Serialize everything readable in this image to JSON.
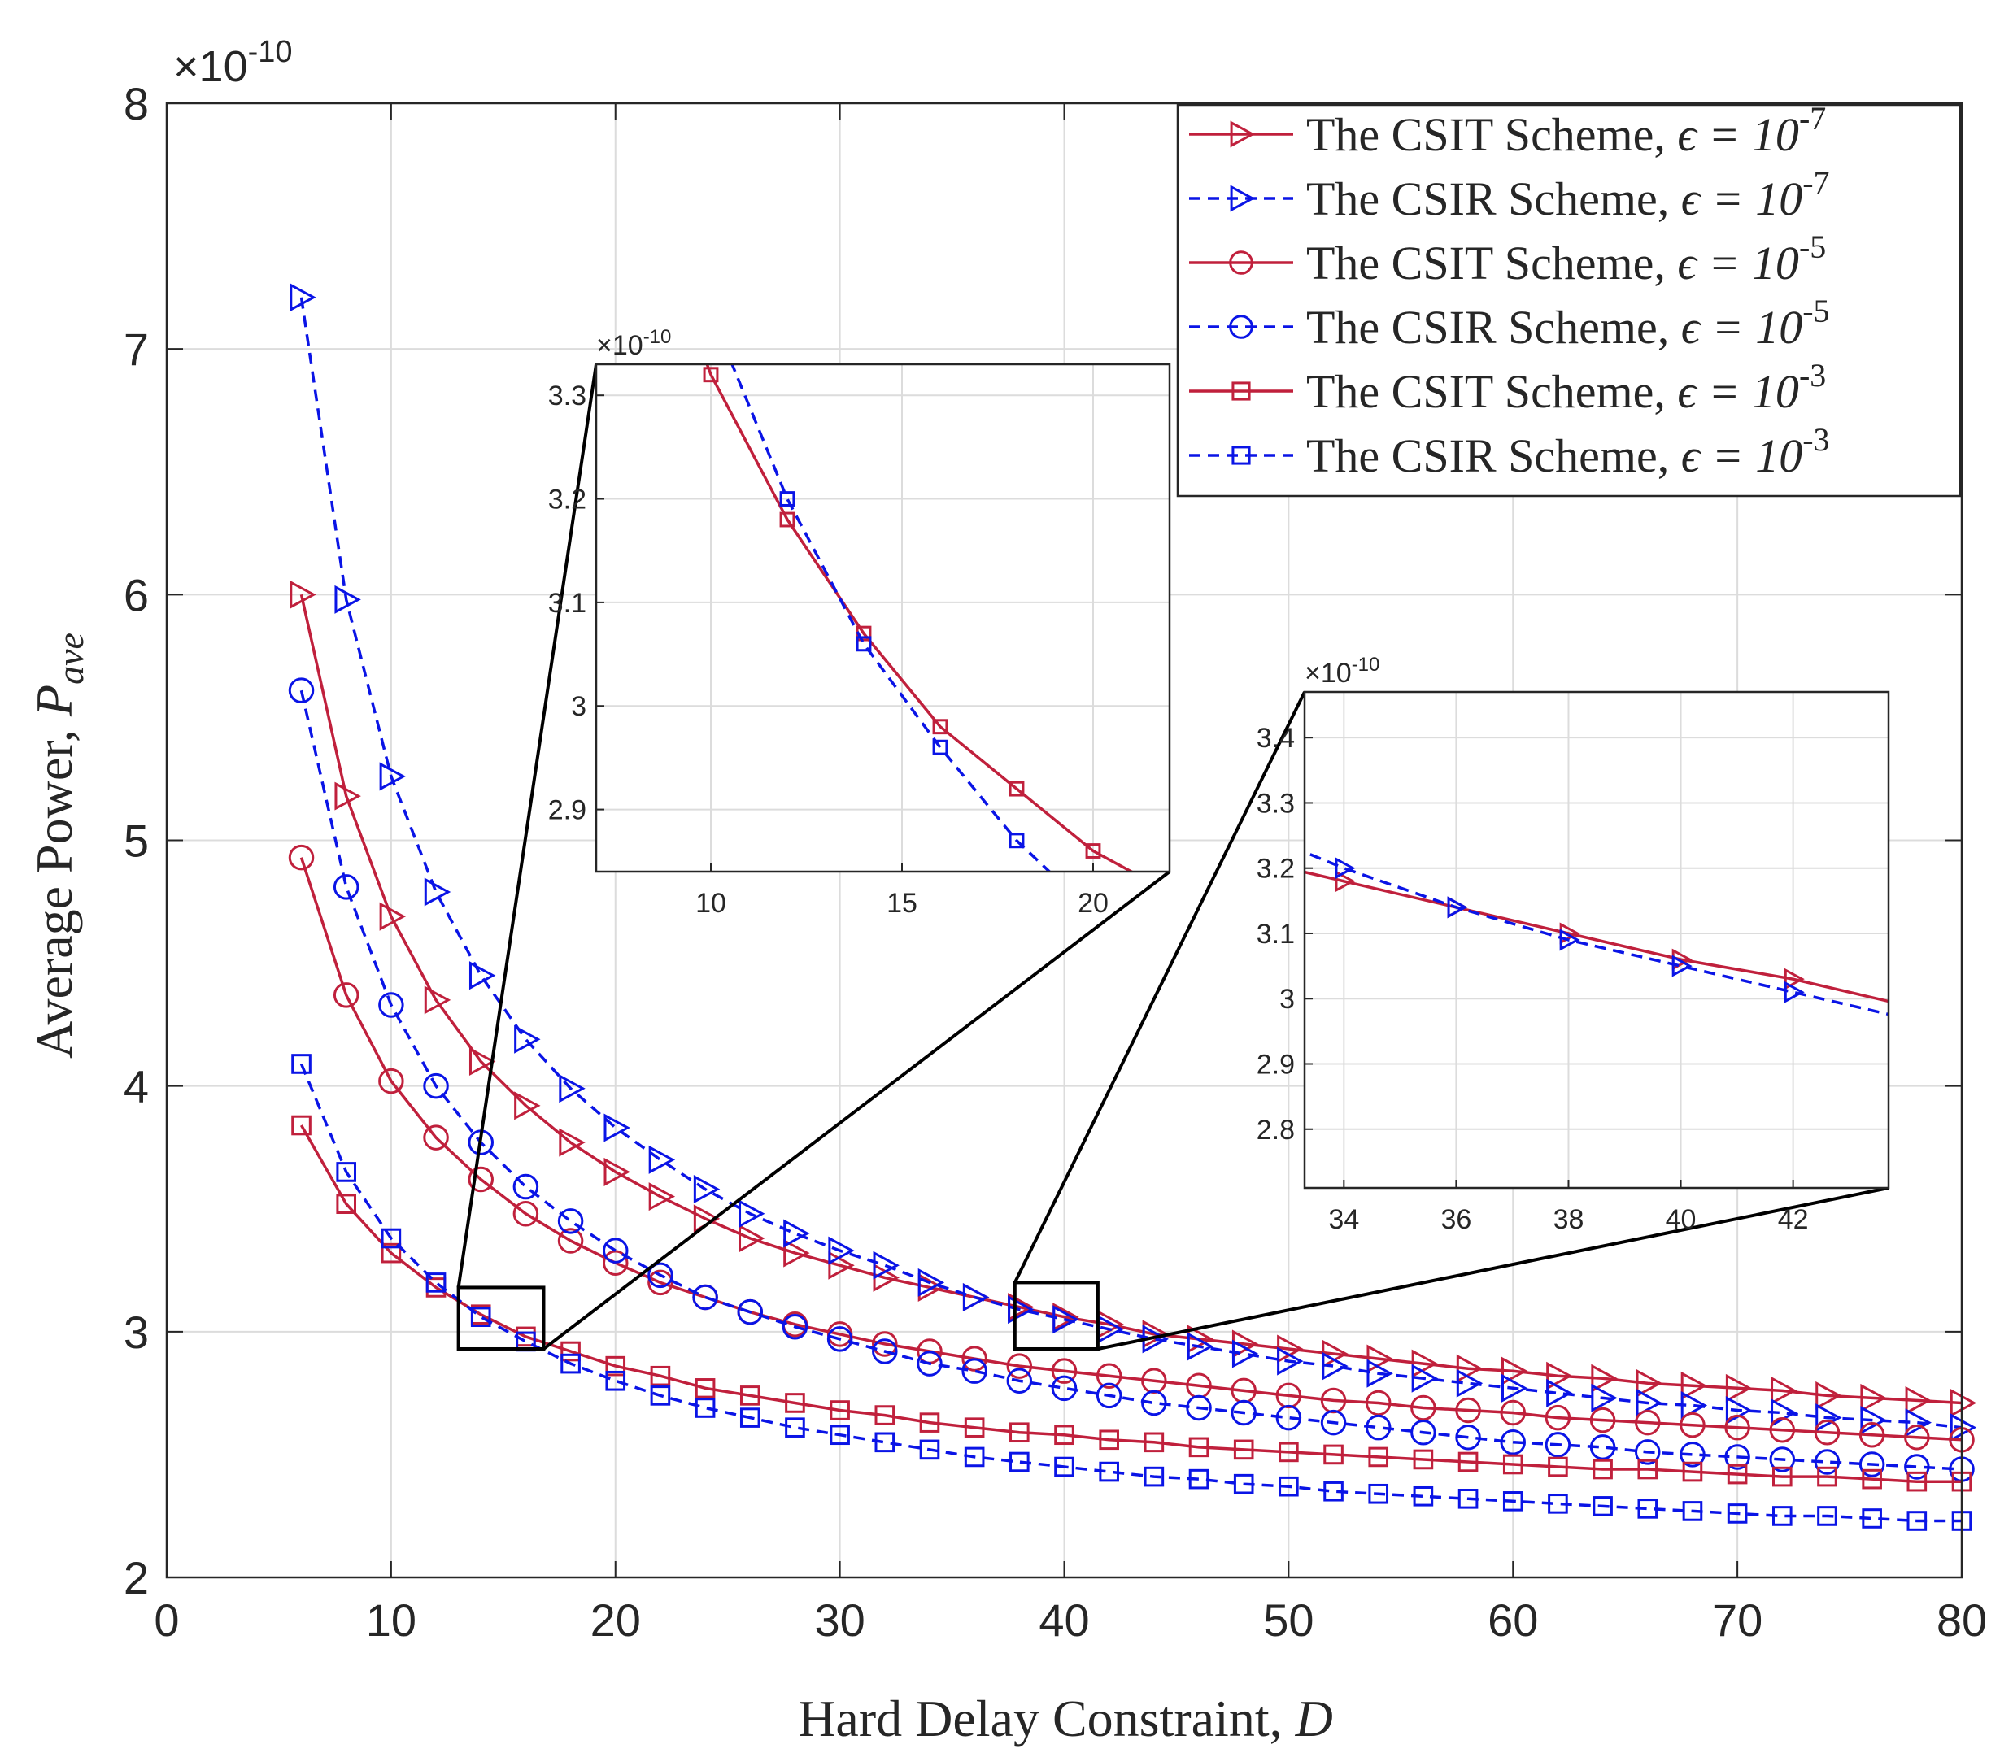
{
  "chart_data": {
    "type": "line",
    "title": "",
    "xlabel": "Hard Delay Constraint, ",
    "xlabel_var": "D",
    "ylabel": "Average Power, ",
    "ylabel_var": "P",
    "ylabel_sub": "ave",
    "y_exponent": "×10",
    "y_exponent_power": "-10",
    "xlim": [
      0,
      80
    ],
    "ylim": [
      2,
      8
    ],
    "xticks": [
      0,
      10,
      20,
      30,
      40,
      50,
      60,
      70,
      80
    ],
    "yticks": [
      2,
      3,
      4,
      5,
      6,
      7,
      8
    ],
    "grid": true,
    "legend_location": "top-right",
    "x": [
      6,
      8,
      10,
      12,
      14,
      16,
      18,
      20,
      22,
      24,
      26,
      28,
      30,
      32,
      34,
      36,
      38,
      40,
      42,
      44,
      46,
      48,
      50,
      52,
      54,
      56,
      58,
      60,
      62,
      64,
      66,
      68,
      70,
      72,
      74,
      76,
      78,
      80
    ],
    "series": [
      {
        "name": "The CSIT Scheme, ",
        "eps_power": "-7",
        "color": "#C0203C",
        "dashed": false,
        "marker": "triangle-right",
        "values": [
          6.0,
          5.18,
          4.69,
          4.35,
          4.1,
          3.92,
          3.77,
          3.65,
          3.55,
          3.46,
          3.38,
          3.32,
          3.27,
          3.22,
          3.18,
          3.14,
          3.1,
          3.06,
          3.03,
          2.99,
          2.97,
          2.95,
          2.93,
          2.91,
          2.89,
          2.87,
          2.85,
          2.84,
          2.82,
          2.81,
          2.79,
          2.78,
          2.77,
          2.76,
          2.74,
          2.73,
          2.72,
          2.71
        ]
      },
      {
        "name": "The CSIR Scheme, ",
        "eps_power": "-7",
        "color": "#0A14E6",
        "dashed": true,
        "marker": "triangle-right",
        "values": [
          7.21,
          5.98,
          5.26,
          4.79,
          4.45,
          4.19,
          3.99,
          3.83,
          3.7,
          3.58,
          3.48,
          3.4,
          3.33,
          3.27,
          3.2,
          3.14,
          3.09,
          3.05,
          3.01,
          2.97,
          2.94,
          2.91,
          2.88,
          2.86,
          2.83,
          2.81,
          2.79,
          2.77,
          2.75,
          2.73,
          2.71,
          2.7,
          2.68,
          2.67,
          2.65,
          2.64,
          2.63,
          2.61
        ]
      },
      {
        "name": "The CSIT Scheme, ",
        "eps_power": "-5",
        "color": "#C0203C",
        "dashed": false,
        "marker": "circle",
        "values": [
          4.93,
          4.37,
          4.02,
          3.79,
          3.62,
          3.48,
          3.37,
          3.28,
          3.2,
          3.14,
          3.08,
          3.03,
          2.99,
          2.95,
          2.92,
          2.89,
          2.86,
          2.84,
          2.82,
          2.8,
          2.78,
          2.76,
          2.74,
          2.72,
          2.71,
          2.69,
          2.68,
          2.67,
          2.65,
          2.64,
          2.63,
          2.62,
          2.61,
          2.6,
          2.59,
          2.58,
          2.57,
          2.56
        ]
      },
      {
        "name": "The CSIR Scheme, ",
        "eps_power": "-5",
        "color": "#0A14E6",
        "dashed": true,
        "marker": "circle",
        "values": [
          5.61,
          4.81,
          4.33,
          4.0,
          3.77,
          3.59,
          3.45,
          3.33,
          3.23,
          3.14,
          3.08,
          3.02,
          2.97,
          2.92,
          2.87,
          2.84,
          2.8,
          2.77,
          2.74,
          2.71,
          2.69,
          2.67,
          2.65,
          2.63,
          2.61,
          2.59,
          2.57,
          2.55,
          2.54,
          2.53,
          2.51,
          2.5,
          2.49,
          2.48,
          2.47,
          2.46,
          2.45,
          2.44
        ]
      },
      {
        "name": "The CSIT Scheme, ",
        "eps_power": "-3",
        "color": "#C0203C",
        "dashed": false,
        "marker": "square",
        "values": [
          3.84,
          3.52,
          3.32,
          3.18,
          3.07,
          2.98,
          2.92,
          2.86,
          2.82,
          2.77,
          2.74,
          2.71,
          2.68,
          2.66,
          2.63,
          2.61,
          2.59,
          2.58,
          2.56,
          2.55,
          2.53,
          2.52,
          2.51,
          2.5,
          2.49,
          2.48,
          2.47,
          2.46,
          2.45,
          2.44,
          2.44,
          2.43,
          2.42,
          2.41,
          2.41,
          2.4,
          2.39,
          2.39
        ]
      },
      {
        "name": "The CSIR Scheme, ",
        "eps_power": "-3",
        "color": "#0A14E6",
        "dashed": true,
        "marker": "square",
        "values": [
          4.09,
          3.65,
          3.38,
          3.2,
          3.06,
          2.96,
          2.87,
          2.8,
          2.74,
          2.69,
          2.65,
          2.61,
          2.58,
          2.55,
          2.52,
          2.49,
          2.47,
          2.45,
          2.43,
          2.41,
          2.4,
          2.38,
          2.37,
          2.35,
          2.34,
          2.33,
          2.32,
          2.31,
          2.3,
          2.29,
          2.28,
          2.27,
          2.26,
          2.25,
          2.25,
          2.24,
          2.23,
          2.23
        ]
      }
    ],
    "legend_eps_symbol": "ϵ = 10",
    "insets": [
      {
        "name": "inset-left",
        "xlim": [
          7,
          22
        ],
        "ylim": [
          2.84,
          3.33
        ],
        "xticks": [
          10,
          15,
          20
        ],
        "yticks": [
          2.9,
          3.0,
          3.1,
          3.2,
          3.3
        ],
        "xtick_labels": [
          "10",
          "15",
          "20"
        ],
        "ytick_labels": [
          "2.9",
          "3",
          "3.1",
          "3.2",
          "3.3"
        ],
        "exponent": "×10",
        "exponent_power": "-10",
        "zoom_x": [
          13,
          16.8
        ],
        "zoom_y": [
          2.93,
          3.18
        ],
        "series_indices": [
          4,
          5
        ]
      },
      {
        "name": "inset-right",
        "xlim": [
          33.3,
          43.7
        ],
        "ylim": [
          2.71,
          3.47
        ],
        "xticks": [
          34,
          36,
          38,
          40,
          42
        ],
        "yticks": [
          2.8,
          2.9,
          3.0,
          3.1,
          3.2,
          3.3,
          3.4
        ],
        "xtick_labels": [
          "34",
          "36",
          "38",
          "40",
          "42"
        ],
        "ytick_labels": [
          "2.8",
          "2.9",
          "3",
          "3.1",
          "3.2",
          "3.3",
          "3.4"
        ],
        "exponent": "×10",
        "exponent_power": "-10",
        "zoom_x": [
          37.8,
          41.5
        ],
        "zoom_y": [
          2.93,
          3.2
        ],
        "series_indices": [
          0,
          1
        ]
      }
    ]
  }
}
